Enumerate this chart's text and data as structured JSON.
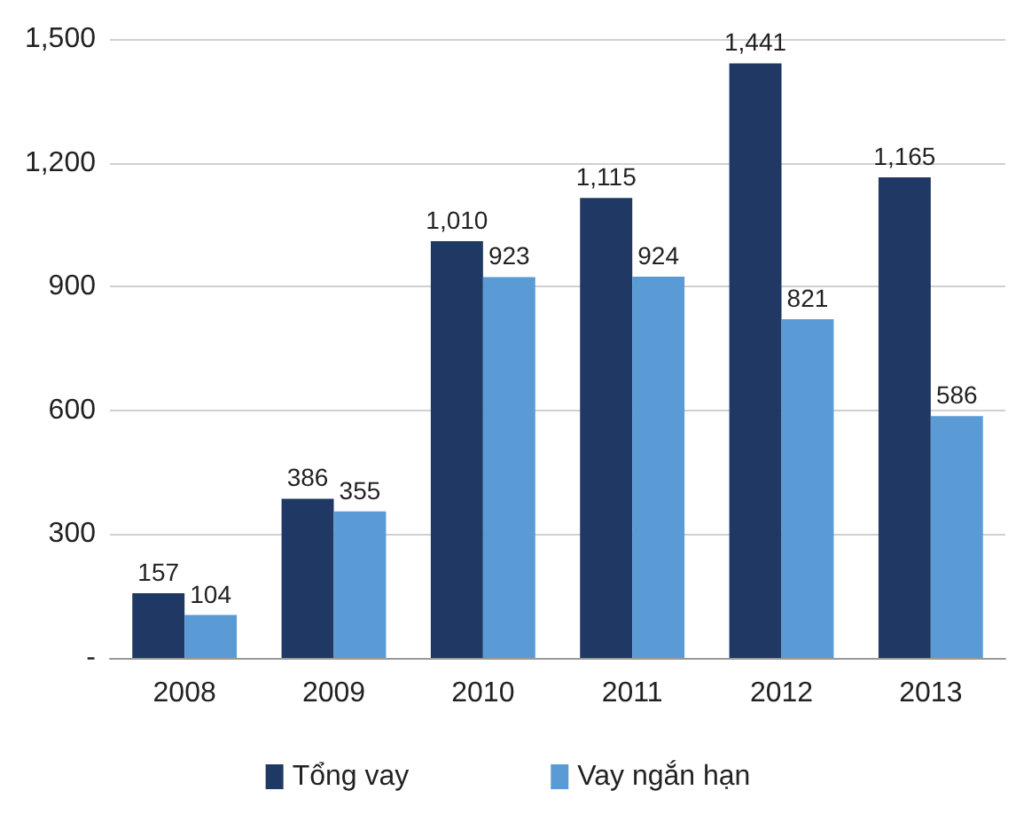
{
  "chart_data": {
    "type": "bar",
    "categories": [
      "2008",
      "2009",
      "2010",
      "2011",
      "2012",
      "2013"
    ],
    "series": [
      {
        "name": "Tổng vay",
        "color": "#1f3864",
        "values": [
          157,
          386,
          1010,
          1115,
          1441,
          1165
        ],
        "value_labels": [
          "157",
          "386",
          "1,010",
          "1,115",
          "1,441",
          "1,165"
        ]
      },
      {
        "name": "Vay ngắn hạn",
        "color": "#5b9bd5",
        "values": [
          104,
          355,
          923,
          924,
          821,
          586
        ],
        "value_labels": [
          "104",
          "355",
          "923",
          "924",
          "821",
          "586"
        ]
      }
    ],
    "ylim": [
      0,
      1500
    ],
    "yticks": [
      {
        "value": 0,
        "label": "-"
      },
      300,
      600,
      900,
      {
        "value": 1200,
        "label": "1,200"
      },
      {
        "value": 1500,
        "label": "1,500"
      }
    ],
    "grid": "y",
    "legend": "bottom"
  }
}
